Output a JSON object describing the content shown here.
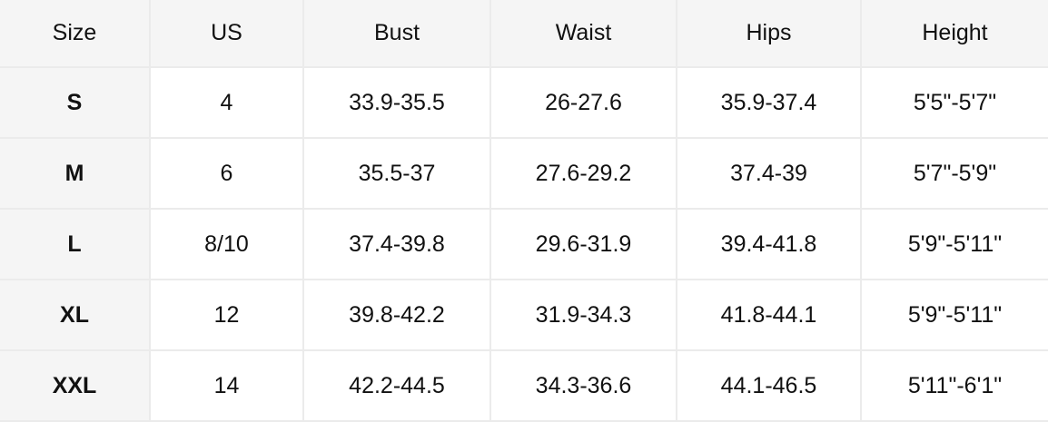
{
  "table": {
    "headers": [
      "Size",
      "US",
      "Bust",
      "Waist",
      "Hips",
      "Height"
    ],
    "rows": [
      [
        "S",
        "4",
        "33.9-35.5",
        "26-27.6",
        "35.9-37.4",
        "5'5\"-5'7\""
      ],
      [
        "M",
        "6",
        "35.5-37",
        "27.6-29.2",
        "37.4-39",
        "5'7\"-5'9\""
      ],
      [
        "L",
        "8/10",
        "37.4-39.8",
        "29.6-31.9",
        "39.4-41.8",
        "5'9\"-5'11\""
      ],
      [
        "XL",
        "12",
        "39.8-42.2",
        "31.9-34.3",
        "41.8-44.1",
        "5'9\"-5'11\""
      ],
      [
        "XXL",
        "14",
        "42.2-44.5",
        "34.3-36.6",
        "44.1-46.5",
        "5'11\"-6'1\""
      ]
    ]
  },
  "colors": {
    "header_bg": "#f5f5f5",
    "border": "#ebebeb",
    "text": "#111111"
  }
}
